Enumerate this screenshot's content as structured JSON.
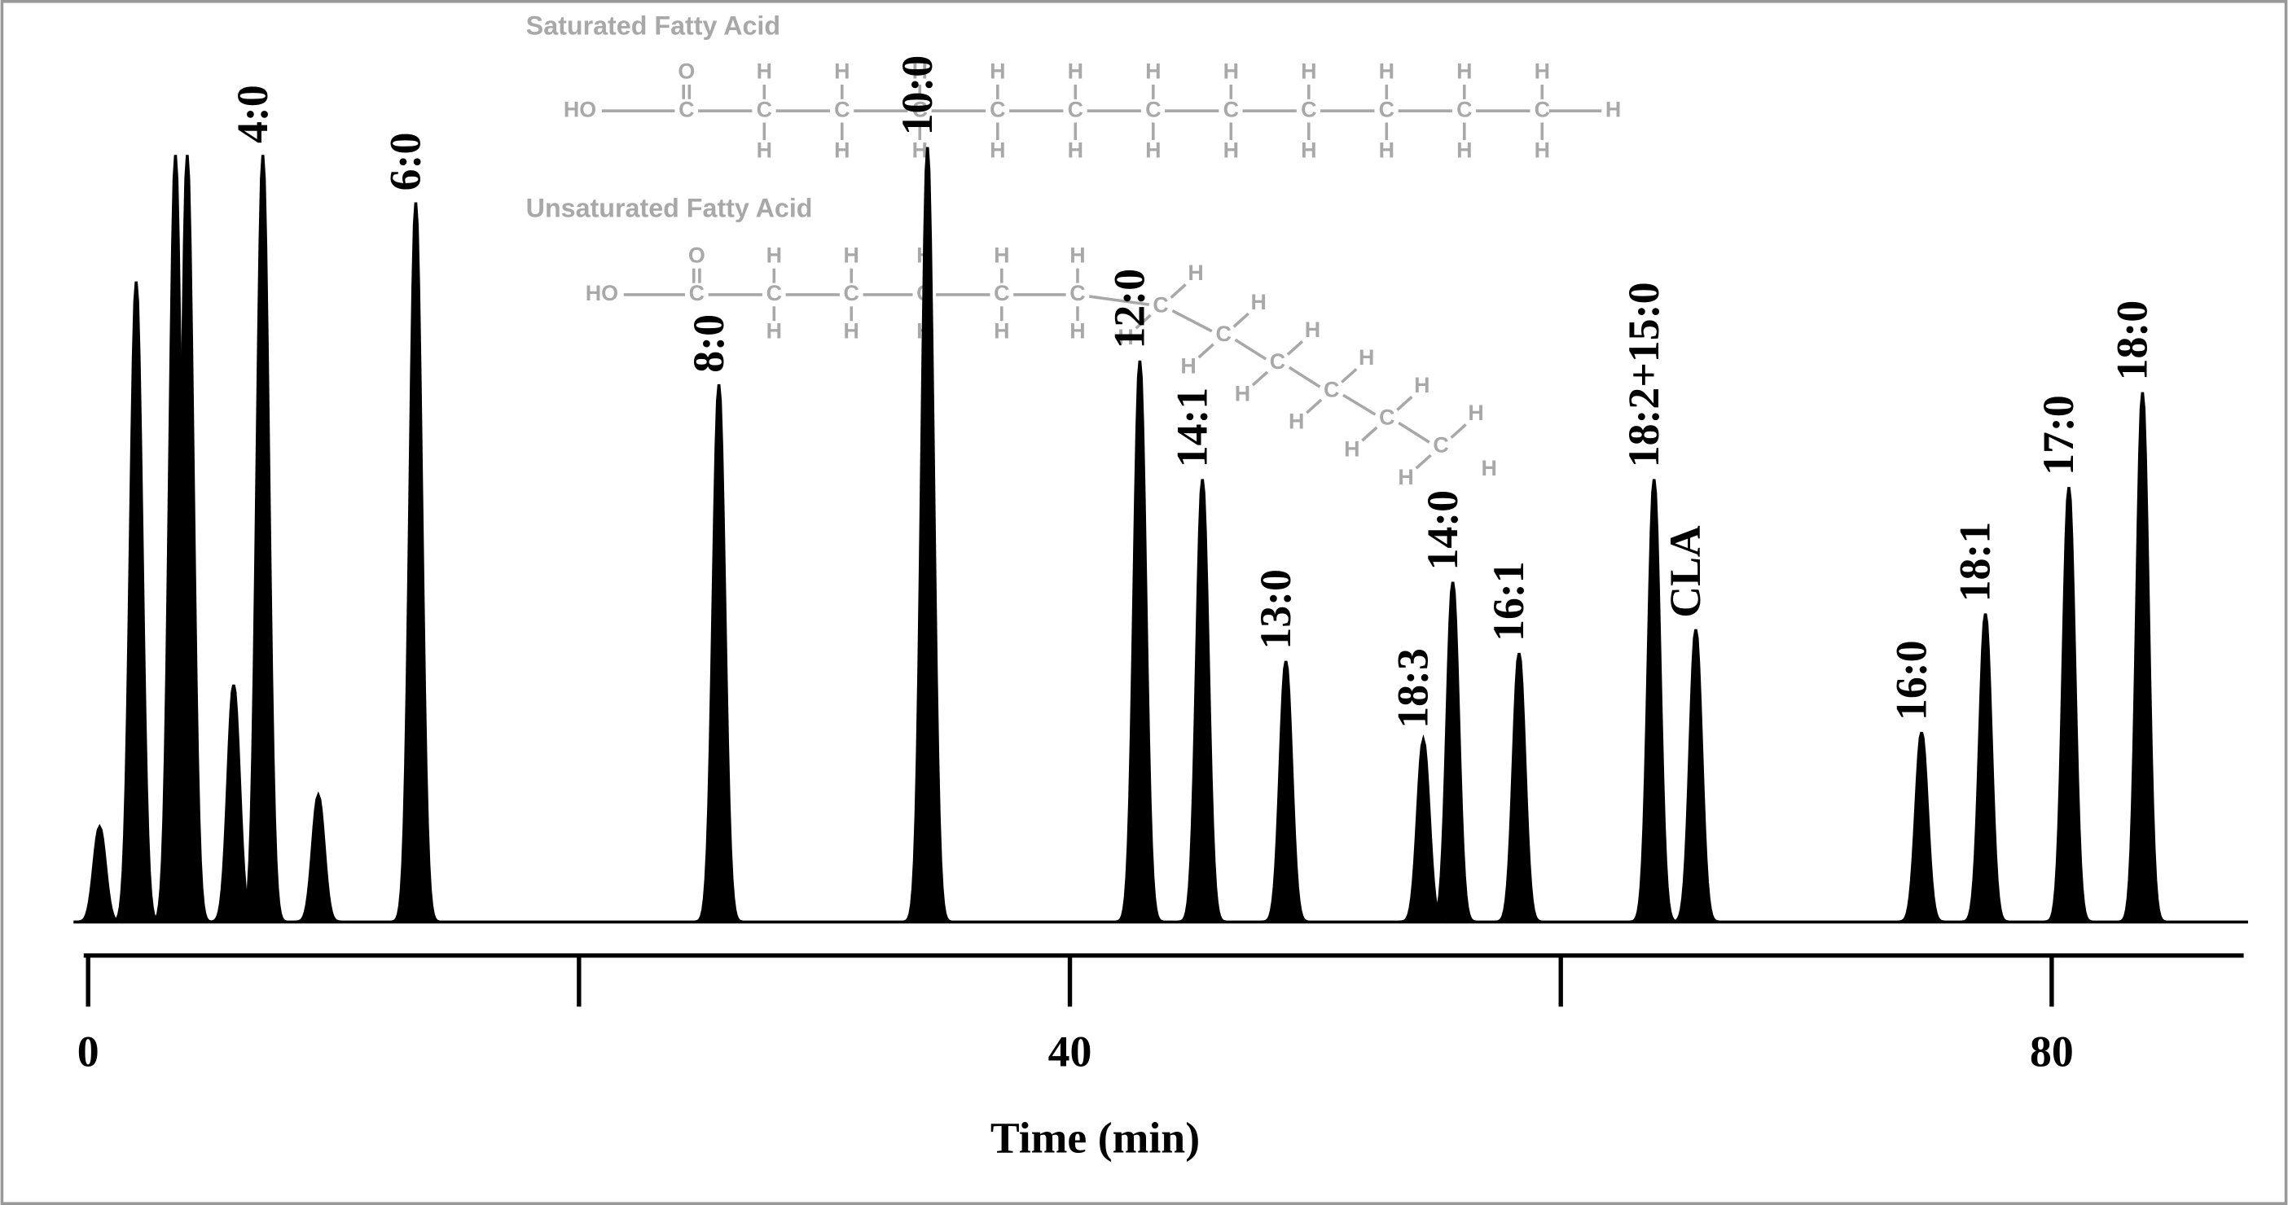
{
  "chart_data": {
    "type": "chromatogram",
    "x_label": "Time (min)",
    "x": [
      0.47,
      1.96,
      3.56,
      4.04,
      5.93,
      7.12,
      9.38,
      13.35,
      25.7,
      34.2,
      42.85,
      45.4,
      48.8,
      54.4,
      55.6,
      58.3,
      63.8,
      65.5,
      74.7,
      77.3,
      80.7,
      83.7
    ],
    "values": [
      12,
      81,
      97,
      97,
      30,
      97,
      16,
      91,
      68,
      98,
      71,
      56,
      33,
      23,
      43,
      34,
      56,
      37,
      24,
      39,
      55,
      67
    ],
    "labels": [
      null,
      null,
      null,
      null,
      null,
      "4:0",
      null,
      "6:0",
      "8:0",
      "10:0",
      "12:0",
      "14:1",
      "13:0",
      "18:3",
      "14:0",
      "16:1",
      "18:2+15:0",
      "CLA",
      "16:0",
      "18:1",
      "17:0",
      "18:0"
    ],
    "color": "#000000",
    "xlim": [
      0,
      88
    ],
    "ylim": [
      0,
      100
    ],
    "xticks": [
      0,
      40,
      80
    ],
    "xminor_ticks": [
      20,
      60
    ],
    "annotations": {
      "saturated_title": "Saturated Fatty Acid",
      "unsaturated_title": "Unsaturated Fatty Acid",
      "atoms": {
        "hydroxyl": "HO",
        "carbon": "C",
        "oxygen": "O",
        "hydrogen": "H"
      }
    }
  }
}
